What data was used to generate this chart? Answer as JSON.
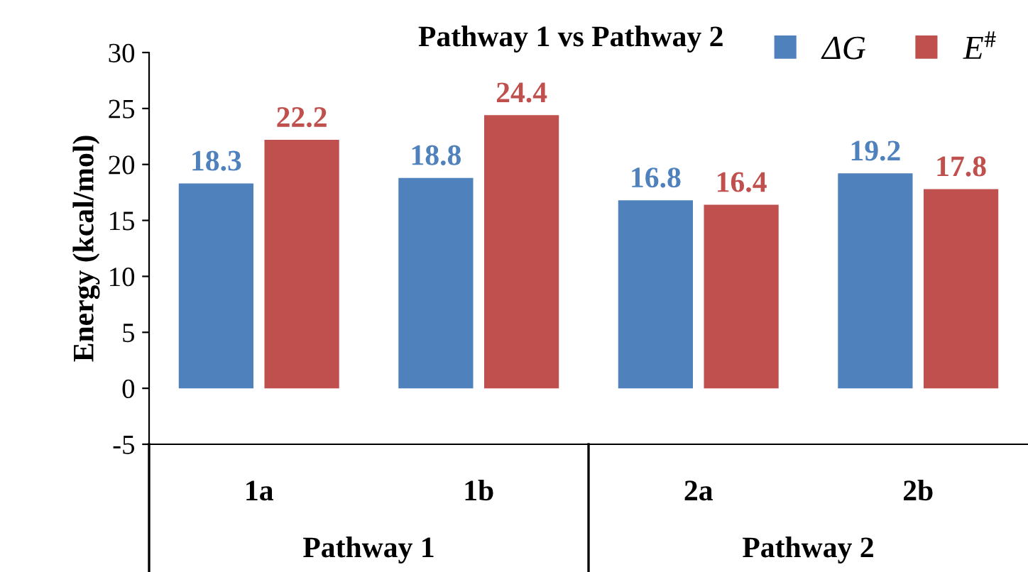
{
  "chart_data": {
    "type": "bar",
    "title": "Pathway 1 vs Pathway 2",
    "ylabel": "Energy (kcal/mol)",
    "categories": [
      "1a",
      "1b",
      "2a",
      "2b"
    ],
    "series": [
      {
        "name": "ΔG",
        "color": "#4f81bd",
        "values": [
          18.3,
          18.8,
          16.8,
          19.2
        ]
      },
      {
        "name": "E$^{#}$",
        "color": "#c0504d",
        "values": [
          22.2,
          24.4,
          16.4,
          17.8
        ]
      }
    ],
    "annotations": [
      "Pathway 1",
      "Pathway 2"
    ],
    "ylim": [
      -5,
      30
    ],
    "yticks": [
      -5,
      0,
      5,
      10,
      15,
      20,
      25,
      30
    ],
    "grid": false,
    "legend": "top right",
    "data_labels": true
  }
}
